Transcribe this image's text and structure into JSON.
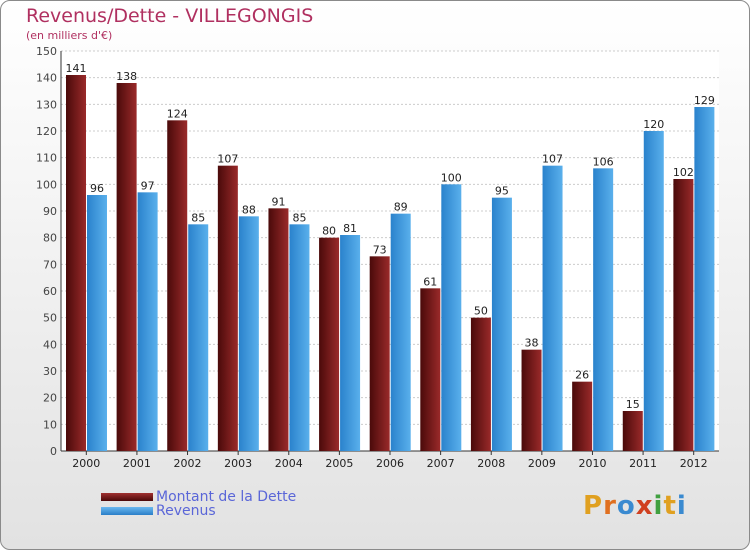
{
  "chart_data": {
    "type": "bar",
    "title": "Revenus/Dette - VILLEGONGIS",
    "subtitle": "(en milliers d'€)",
    "categories": [
      "2000",
      "2001",
      "2002",
      "2003",
      "2004",
      "2005",
      "2006",
      "2007",
      "2008",
      "2009",
      "2010",
      "2011",
      "2012"
    ],
    "series": [
      {
        "name": "Montant de la Dette",
        "color": "#7a1a1a",
        "values": [
          141,
          138,
          124,
          107,
          91,
          80,
          73,
          61,
          50,
          38,
          26,
          15,
          102
        ]
      },
      {
        "name": "Revenus",
        "color": "#4a9fe0",
        "values": [
          96,
          97,
          85,
          88,
          85,
          81,
          89,
          100,
          95,
          107,
          106,
          120,
          129
        ]
      }
    ],
    "ylim": [
      0,
      150
    ],
    "yticks": [
      0,
      10,
      20,
      30,
      40,
      50,
      60,
      70,
      80,
      90,
      100,
      110,
      120,
      130,
      140,
      150
    ],
    "grid": true,
    "legend_position": "bottom-left"
  },
  "logo": {
    "letters": [
      "P",
      "r",
      "o",
      "x",
      "i",
      "t",
      "i"
    ],
    "colors": [
      "#e0a020",
      "#e07020",
      "#3a8ad0",
      "#d04020",
      "#40a040",
      "#e0a020",
      "#3a8ad0"
    ]
  }
}
